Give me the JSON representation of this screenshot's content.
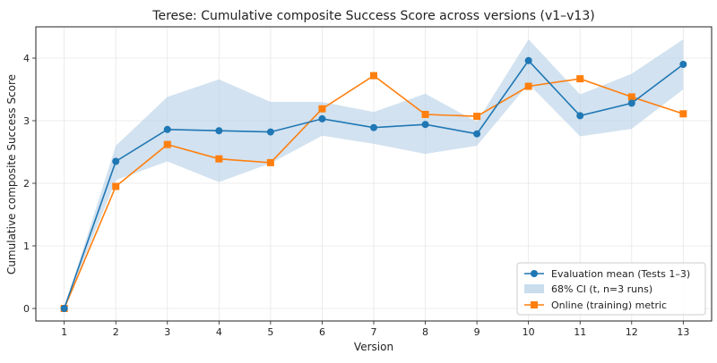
{
  "chart_data": {
    "type": "line",
    "title": "Terese: Cumulative composite Success Score across versions (v1–v13)",
    "xlabel": "Version",
    "ylabel": "Cumulative composite Success Score",
    "x": [
      1,
      2,
      3,
      4,
      5,
      6,
      7,
      8,
      9,
      10,
      11,
      12,
      13
    ],
    "xlim": [
      0.45,
      13.55
    ],
    "ylim": [
      -0.2,
      4.5
    ],
    "x_ticks": [
      1,
      2,
      3,
      4,
      5,
      6,
      7,
      8,
      9,
      10,
      11,
      12,
      13
    ],
    "y_ticks": [
      0,
      1,
      2,
      3,
      4
    ],
    "grid": true,
    "legend_position": "bottom-right",
    "series": [
      {
        "name": "Evaluation mean (Tests 1–3)",
        "kind": "line",
        "marker": "circle",
        "color": "#1f77b4",
        "values": [
          0.0,
          2.35,
          2.86,
          2.84,
          2.82,
          3.03,
          2.89,
          2.94,
          2.79,
          3.96,
          3.08,
          3.28,
          3.9
        ]
      },
      {
        "name": "68% CI (t, n=3 runs)",
        "kind": "band",
        "color": "#b4cfe6",
        "lower": [
          0.0,
          2.05,
          2.35,
          2.02,
          2.32,
          2.76,
          2.63,
          2.47,
          2.6,
          3.59,
          2.75,
          2.87,
          3.5
        ],
        "upper": [
          0.0,
          2.6,
          3.38,
          3.66,
          3.3,
          3.3,
          3.14,
          3.43,
          2.98,
          4.3,
          3.42,
          3.75,
          4.3
        ]
      },
      {
        "name": "Online (training) metric",
        "kind": "line",
        "marker": "square",
        "color": "#ff7f0e",
        "values": [
          0.0,
          1.95,
          2.62,
          2.39,
          2.33,
          3.19,
          3.72,
          3.1,
          3.07,
          3.55,
          3.67,
          3.38,
          3.11
        ]
      }
    ]
  }
}
